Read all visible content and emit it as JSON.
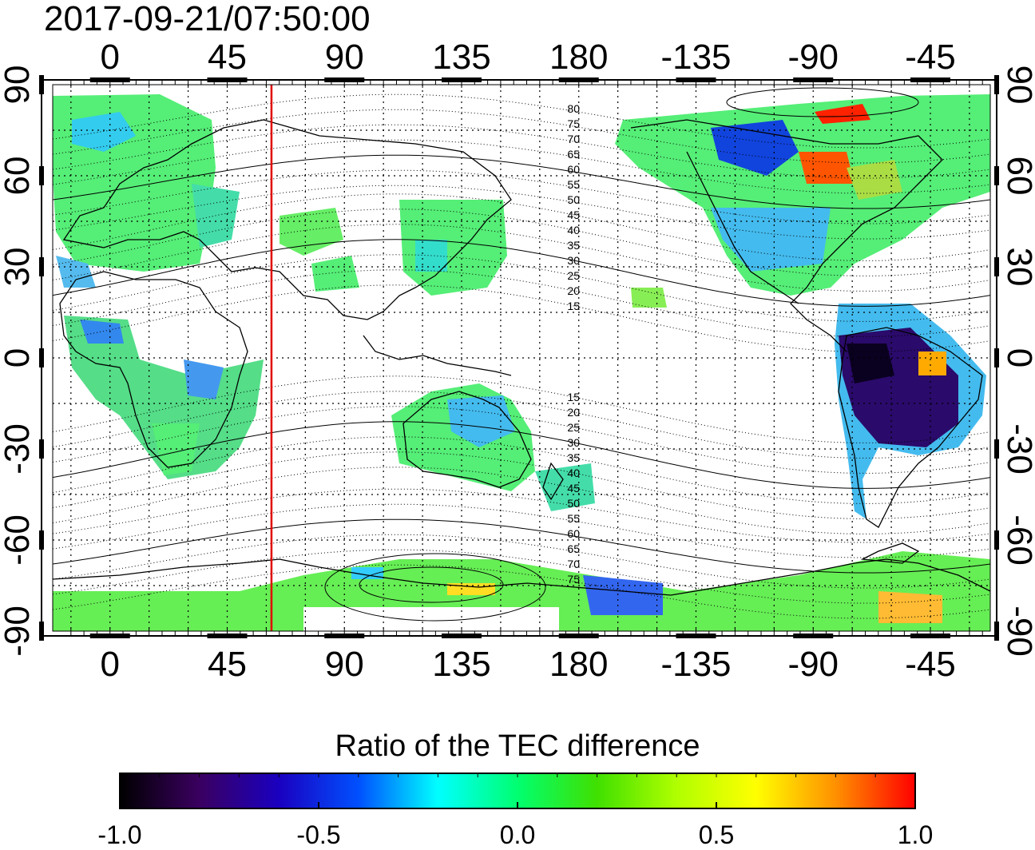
{
  "title": "2017-09-21/07:50:00",
  "map": {
    "projection": "equirectangular",
    "lon_start": -22,
    "lon_end": 338,
    "lat_min": -90,
    "lat_max": 90,
    "top_ticks": [
      "0",
      "45",
      "90",
      "135",
      "180",
      "-135",
      "-90",
      "-45"
    ],
    "bottom_ticks": [
      "0",
      "45",
      "90",
      "135",
      "180",
      "-135",
      "-90",
      "-45"
    ],
    "tick_lon_values": [
      0,
      45,
      90,
      135,
      180,
      225,
      270,
      315
    ],
    "left_ticks": [
      "90",
      "60",
      "30",
      "0",
      "-30",
      "-60",
      "-90"
    ],
    "right_ticks": [
      "90",
      "60",
      "30",
      "0",
      "-30",
      "-60",
      "-90"
    ],
    "tick_lat_values": [
      90,
      60,
      30,
      0,
      -30,
      -60,
      -90
    ],
    "grid": true,
    "meridian_marker": {
      "lon": 62,
      "color": "#e00000"
    },
    "magnetic_latitude_labels": [
      "80",
      "75",
      "70",
      "65",
      "60",
      "55",
      "50",
      "45",
      "40",
      "35",
      "30",
      "25",
      "20",
      "15",
      "15",
      "20",
      "25",
      "30",
      "35",
      "40",
      "45",
      "50",
      "55",
      "60",
      "65",
      "70",
      "75"
    ],
    "magnetic_latitude_values": [
      80,
      75,
      70,
      65,
      60,
      55,
      50,
      45,
      40,
      35,
      30,
      25,
      20,
      15,
      -15,
      -20,
      -25,
      -30,
      -35,
      -40,
      -45,
      -50,
      -55,
      -60,
      -65,
      -70,
      -75
    ],
    "magnetic_label_lon": 178
  },
  "colorbar": {
    "title": "Ratio of the TEC difference",
    "min": -1.0,
    "max": 1.0,
    "tick_labels": [
      "-1.0",
      "-0.5",
      "0.0",
      "0.5",
      "1.0"
    ],
    "tick_values": [
      -1.0,
      -0.5,
      0.0,
      0.5,
      1.0
    ],
    "colors": [
      "#000000",
      "#3a0060",
      "#1a00c0",
      "#0050ff",
      "#00ffff",
      "#00ff70",
      "#40e000",
      "#b0ff00",
      "#ffff00",
      "#ff9000",
      "#ff0000"
    ]
  }
}
